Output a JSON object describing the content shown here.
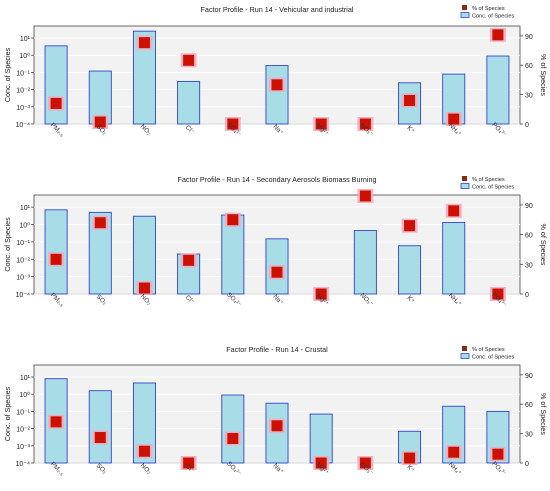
{
  "figure": {
    "background": "#ffffff",
    "plot_background": "#f2f2f2"
  },
  "colors": {
    "bar_fill": "#a8dde8",
    "bar_stroke": "#3344cc",
    "marker_fill": "#cc1100",
    "marker_halo": "#f2a8c0",
    "legend_marker": "#8a2a12",
    "axis": "#444444",
    "grid": "#ffffff"
  },
  "icons": {
    "percent_legend": "square-marker-icon",
    "conc_legend": "bar-swatch-icon"
  },
  "chart_data": [
    {
      "type": "bar",
      "title": "Factor Profile - Run 14 - Vehicular and industrial",
      "ylabel": "Conc. of Species",
      "y2label": "% of Species",
      "legend": [
        "% of Species",
        "Conc. of Species"
      ],
      "legend_position": "top-right",
      "yscale": "log",
      "ylim": [
        0.0001,
        50
      ],
      "y_ticks": [
        "10⁻⁴",
        "10⁻³",
        "10⁻²",
        "10⁻¹",
        "10⁰",
        "10¹"
      ],
      "y2lim": [
        0,
        100
      ],
      "y2_ticks": [
        "0",
        "30",
        "60",
        "90"
      ],
      "categories": [
        "PM₂.₅",
        "SO₂",
        "NO₂",
        "Cl⁻",
        "SO₄²⁻",
        "Na⁺",
        "Mg²⁺",
        "NO₃⁻",
        "K⁺",
        "NH₄⁺",
        "PO₄³⁻"
      ],
      "series": [
        {
          "name": "Conc. of Species",
          "type": "bar",
          "values": [
            3.5,
            0.12,
            25,
            0.03,
            null,
            0.25,
            null,
            null,
            0.025,
            0.08,
            0.9
          ]
        },
        {
          "name": "% of Species",
          "type": "scatter",
          "values": [
            21,
            2,
            83,
            65,
            0,
            40,
            0,
            0,
            24,
            5,
            91
          ]
        }
      ]
    },
    {
      "type": "bar",
      "title": "Factor Profile - Run 14 - Secondary Aerosols Biomass Burning",
      "ylabel": "Conc. of Species",
      "y2label": "% of Species",
      "legend": [
        "% of Species",
        "Conc. of Species"
      ],
      "legend_position": "top-right",
      "yscale": "log",
      "ylim": [
        0.0001,
        50
      ],
      "y_ticks": [
        "10⁻⁴",
        "10⁻³",
        "10⁻²",
        "10⁻¹",
        "10⁰",
        "10¹"
      ],
      "y2lim": [
        0,
        100
      ],
      "y2_ticks": [
        "0",
        "30",
        "60",
        "90"
      ],
      "categories": [
        "PM₂.₅",
        "SO₂",
        "NO₂",
        "Cl⁻",
        "SO₄²⁻",
        "Na⁺",
        "Mg²⁺",
        "NO₃⁻",
        "K⁺",
        "NH₄⁺",
        "PO₄³⁻"
      ],
      "series": [
        {
          "name": "Conc. of Species",
          "type": "bar",
          "values": [
            7,
            5,
            3,
            0.02,
            3.5,
            0.15,
            null,
            0.45,
            0.06,
            1.3,
            null
          ]
        },
        {
          "name": "% of Species",
          "type": "scatter",
          "values": [
            35,
            72,
            6,
            34,
            75,
            22,
            0,
            99,
            69,
            84,
            0
          ]
        }
      ]
    },
    {
      "type": "bar",
      "title": "Factor Profile - Run 14 - Crustal",
      "ylabel": "Conc. of Species",
      "y2label": "% of Species",
      "legend": [
        "% of Species",
        "Conc. of Species"
      ],
      "legend_position": "top-right",
      "yscale": "log",
      "ylim": [
        0.0001,
        50
      ],
      "y_ticks": [
        "10⁻⁴",
        "10⁻³",
        "10⁻²",
        "10⁻¹",
        "10⁰",
        "10¹"
      ],
      "y2lim": [
        0,
        100
      ],
      "y2_ticks": [
        "0",
        "30",
        "60",
        "90"
      ],
      "categories": [
        "PM₂.₅",
        "SO₂",
        "NO₂",
        "Cl⁻",
        "SO₄²⁻",
        "Na⁺",
        "Mg²⁺",
        "NO₃⁻",
        "K⁺",
        "NH₄⁺",
        "PO₄³⁻"
      ],
      "series": [
        {
          "name": "Conc. of Species",
          "type": "bar",
          "values": [
            8,
            1.6,
            4.5,
            null,
            0.9,
            0.3,
            0.07,
            null,
            0.007,
            0.2,
            0.1
          ]
        },
        {
          "name": "% of Species",
          "type": "scatter",
          "values": [
            42,
            26,
            12,
            0,
            25,
            38,
            0,
            0,
            5,
            11,
            9
          ]
        }
      ]
    }
  ]
}
